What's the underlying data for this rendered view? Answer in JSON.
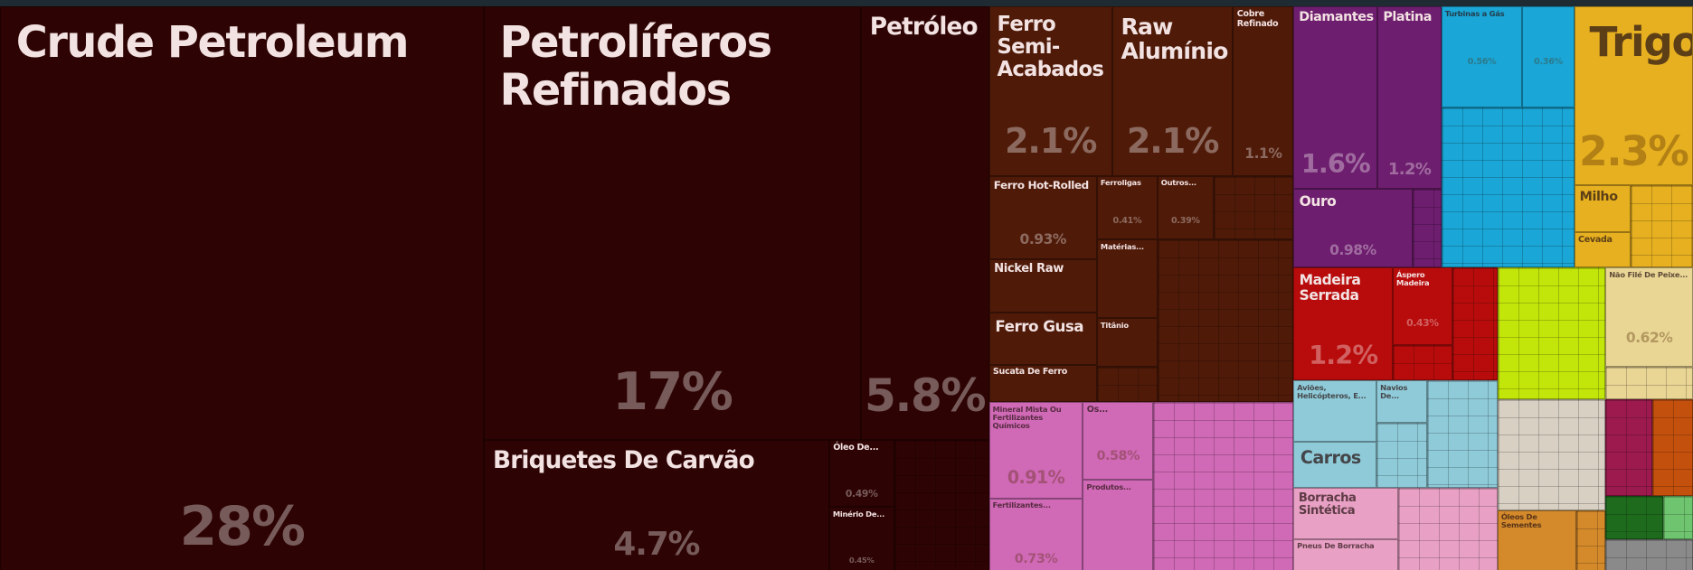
{
  "chart_data": {
    "type": "treemap",
    "categories": [
      "Crude Petroleum",
      "Petrolíferos Refinados",
      "Petróleo",
      "Briquetes De Carvão",
      "Óleo De...",
      "Minério De...",
      "Ferro Semi-Acabados",
      "Raw Alumínio",
      "Cobre Refinado",
      "Ferro Hot-Rolled",
      "Ferroligas",
      "Outros...",
      "Matérias...",
      "Nickel Raw",
      "Ferro Gusa",
      "Titânio",
      "Sucata De Ferro",
      "Mineral Mista Ou Fertilizantes Químicos",
      "Os...",
      "Produtos...",
      "Fertilizantes...",
      "Diamantes",
      "Platina",
      "Ouro",
      "Turbinas a Gás",
      null,
      "Trigo",
      "Milho",
      "Cevada",
      "Madeira Serrada",
      "Áspero Madeira",
      "Não Filé De Peixe...",
      "Aviões, Helicópteros, E...",
      "Navios De...",
      "Carros",
      "Borracha Sintética",
      "Pneus De Borracha",
      "Óleos De Sementes"
    ],
    "values": [
      28,
      17,
      5.8,
      4.7,
      0.49,
      0.45,
      2.1,
      2.1,
      1.1,
      0.93,
      0.41,
      0.39,
      0.5,
      0.6,
      0.59,
      0.31,
      0.43,
      0.91,
      0.58,
      0.65,
      0.73,
      1.6,
      1.2,
      0.98,
      0.56,
      0.36,
      2.3,
      0.27,
      0.21,
      1.2,
      0.43,
      0.62,
      0.54,
      0.22,
      0.39,
      0.57,
      0.34,
      0.5
    ],
    "value_labels": [
      "28%",
      "17%",
      "5.8%",
      "4.7%",
      "0.49%",
      "0.45%",
      "2.1%",
      "2.1%",
      "1.1%",
      "0.93%",
      "0.41%",
      "0.39%",
      null,
      null,
      null,
      null,
      null,
      "0.91%",
      "0.58%",
      null,
      "0.73%",
      "1.6%",
      "1.2%",
      "0.98%",
      "0.56%",
      "0.36%",
      "2.3%",
      null,
      null,
      "1.2%",
      "0.43%",
      "0.62%",
      null,
      null,
      null,
      null,
      null,
      null
    ],
    "colors": [
      "#2e0303",
      "#2e0303",
      "#2e0303",
      "#2e0303",
      "#2e0303",
      "#2e0303",
      "#4f1a08",
      "#4f1a08",
      "#4f1a08",
      "#4f1a08",
      "#4f1a08",
      "#4f1a08",
      "#4f1a08",
      "#4f1a08",
      "#4f1a08",
      "#4f1a08",
      "#4f1a08",
      "#d069b6",
      "#d069b6",
      "#d069b6",
      "#d069b6",
      "#6e1e6e",
      "#6e1e6e",
      "#6e1e6e",
      "#1aa6d6",
      "#1aa6d6",
      "#e6b020",
      "#e6b020",
      "#e6b020",
      "#b80c0c",
      "#b80c0c",
      "#e9d594",
      "#8fcad8",
      "#8fcad8",
      "#8fcad8",
      "#e8a0c4",
      "#e8a0c4",
      "#d4892a"
    ]
  }
}
